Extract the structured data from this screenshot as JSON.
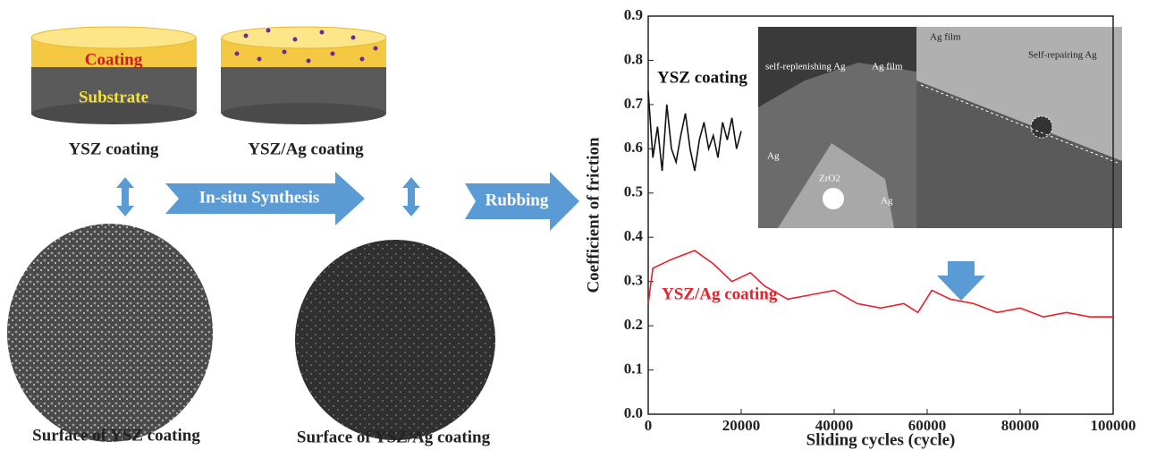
{
  "diagram": {
    "coating": "Coating",
    "substrate": "Substrate",
    "ysz_coating": "YSZ coating",
    "ysz_ag_coating": "YSZ/Ag coating",
    "synthesis": "In-situ Synthesis",
    "rubbing": "Rubbing",
    "surface_ysz": "Surface of YSZ coating",
    "surface_ysz_ag": "Surface of YSZ/Ag coating"
  },
  "insets": [
    "self-replenishing Ag",
    "Ag film",
    "Ag",
    "ZrO2",
    "Ag",
    "Ag film",
    "Self-repairing Ag"
  ],
  "chart_data": {
    "type": "line",
    "xlabel": "Sliding cycles (cycle)",
    "ylabel": "Coefficient of friction",
    "xlim": [
      0,
      100000
    ],
    "ylim": [
      0,
      0.9
    ],
    "xticks": [
      0,
      20000,
      40000,
      60000,
      80000,
      100000
    ],
    "yticks": [
      {
        "value": 0,
        "label": "0.0"
      },
      0.1,
      0.2,
      0.3,
      0.4,
      0.5,
      0.6,
      0.7,
      0.8,
      0.9
    ],
    "series": [
      {
        "name": "YSZ coating",
        "color": "#111111",
        "x": [
          0,
          1000,
          2000,
          3000,
          4000,
          5000,
          6000,
          7000,
          8000,
          9000,
          10000,
          11000,
          12000,
          13000,
          14000,
          15000,
          16000,
          17000,
          18000,
          19000,
          20000
        ],
        "values": [
          0.73,
          0.58,
          0.65,
          0.55,
          0.7,
          0.6,
          0.57,
          0.63,
          0.68,
          0.6,
          0.55,
          0.62,
          0.66,
          0.6,
          0.63,
          0.58,
          0.66,
          0.62,
          0.67,
          0.6,
          0.64
        ]
      },
      {
        "name": "YSZ/Ag coating",
        "color": "#e8202a",
        "x": [
          0,
          1000,
          5000,
          10000,
          14000,
          18000,
          22000,
          25000,
          30000,
          35000,
          40000,
          45000,
          50000,
          55000,
          58000,
          61000,
          65000,
          70000,
          75000,
          80000,
          85000,
          90000,
          95000,
          100000
        ],
        "values": [
          0.25,
          0.33,
          0.35,
          0.37,
          0.34,
          0.3,
          0.32,
          0.29,
          0.26,
          0.27,
          0.28,
          0.25,
          0.24,
          0.25,
          0.23,
          0.28,
          0.26,
          0.25,
          0.23,
          0.24,
          0.22,
          0.23,
          0.22,
          0.22
        ]
      }
    ]
  }
}
